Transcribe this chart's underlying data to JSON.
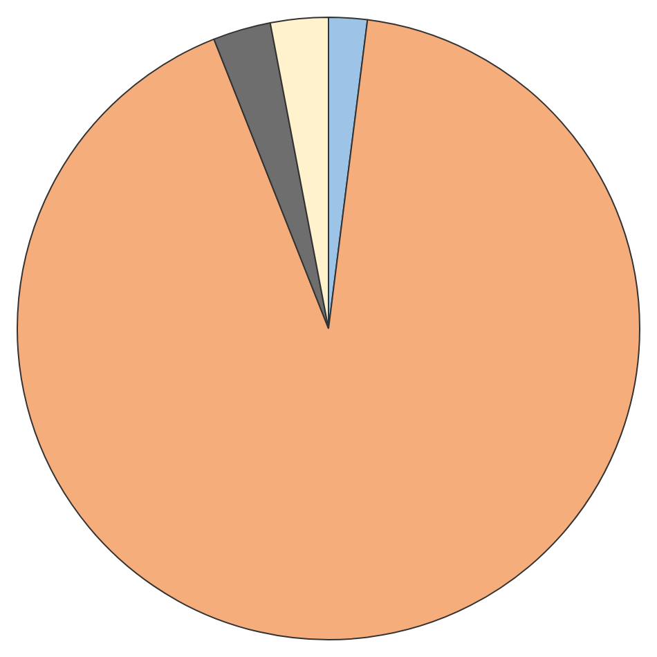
{
  "chart_data": {
    "type": "pie",
    "categories": [
      null,
      null,
      null,
      null
    ],
    "values": [
      2,
      92,
      3,
      3
    ],
    "colors": [
      "#9dc3e6",
      "#f5ad7c",
      "#6e6e6e",
      "#fff2cc"
    ],
    "legend": false
  }
}
